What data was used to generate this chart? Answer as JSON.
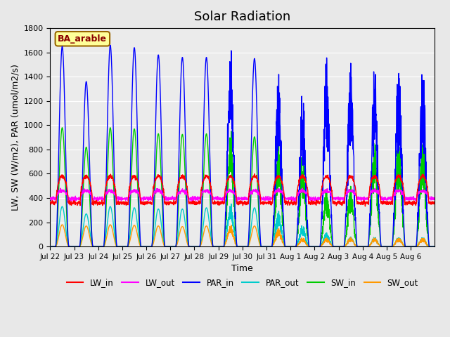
{
  "title": "Solar Radiation",
  "ylabel": "LW, SW (W/m2), PAR (umol/m2/s)",
  "xlabel": "Time",
  "ylim": [
    0,
    1800
  ],
  "legend_labels": [
    "LW_in",
    "LW_out",
    "PAR_in",
    "PAR_out",
    "SW_in",
    "SW_out"
  ],
  "legend_colors": [
    "#ff0000",
    "#ff00ff",
    "#0000ff",
    "#00cccc",
    "#00cc00",
    "#ff9900"
  ],
  "annotation_text": "BA_arable",
  "annotation_bg": "#ffff99",
  "annotation_border": "#996600",
  "n_days": 16,
  "xtick_labels": [
    "Jul 22",
    "Jul 23",
    "Jul 24",
    "Jul 25",
    "Jul 26",
    "Jul 27",
    "Jul 28",
    "Jul 29",
    "Jul 30",
    "Jul 31",
    "Aug 1",
    "Aug 2",
    "Aug 3",
    "Aug 4",
    "Aug 5",
    "Aug 6"
  ],
  "PAR_in_peaks": [
    1650,
    1360,
    1660,
    1640,
    1580,
    1560,
    1560,
    1700,
    1550,
    1510,
    1300,
    1640,
    1520,
    1530,
    1550,
    1560
  ],
  "PAR_out_peaks": [
    330,
    270,
    330,
    320,
    310,
    310,
    320,
    370,
    320,
    310,
    180,
    120,
    80,
    80,
    80,
    80
  ],
  "SW_in_peaks": [
    980,
    820,
    980,
    970,
    930,
    925,
    930,
    1000,
    905,
    900,
    770,
    500,
    500,
    905,
    915,
    925
  ],
  "SW_out_peaks": [
    180,
    170,
    180,
    175,
    170,
    165,
    170,
    185,
    170,
    160,
    75,
    75,
    75,
    75,
    75,
    75
  ],
  "LW_in_base": 360,
  "LW_out_base": 395,
  "LW_in_day_peak": 580,
  "LW_out_day_peak": 460
}
